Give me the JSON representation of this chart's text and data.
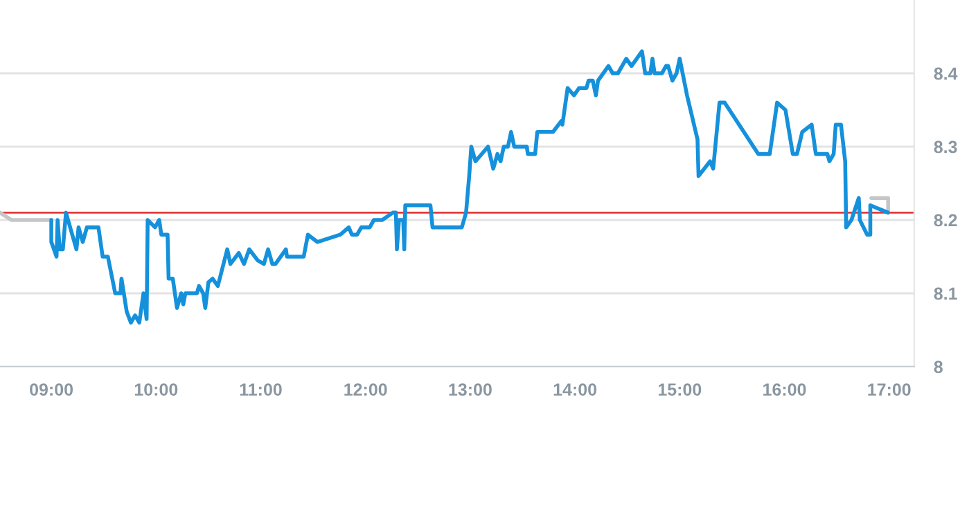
{
  "chart_data": {
    "type": "line",
    "xlim": [
      8.51,
      17.24
    ],
    "ylim": [
      8,
      8.5
    ],
    "xticks": [
      {
        "value": 9,
        "label": "09:00"
      },
      {
        "value": 10,
        "label": "10:00"
      },
      {
        "value": 11,
        "label": "11:00"
      },
      {
        "value": 12,
        "label": "12:00"
      },
      {
        "value": 13,
        "label": "13:00"
      },
      {
        "value": 14,
        "label": "14:00"
      },
      {
        "value": 15,
        "label": "15:00"
      },
      {
        "value": 16,
        "label": "16:00"
      },
      {
        "value": 17,
        "label": "17:00"
      }
    ],
    "yticks": [
      8,
      8.1,
      8.2,
      8.3,
      8.4
    ],
    "grid": "y",
    "line_style": "solid",
    "marker": "none",
    "ref_lines": [
      {
        "axis": "y",
        "value": 8.21,
        "color": "#e03a3a"
      }
    ],
    "series": [
      {
        "color": "#c4c6c8",
        "x": [
          8.51,
          8.62,
          9.0,
          null,
          16.83,
          16.99,
          16.99
        ],
        "values": [
          8.21,
          8.2,
          8.2,
          null,
          8.23,
          8.23,
          8.21
        ]
      },
      {
        "color": "#1591dc",
        "x": [
          9.0,
          9.0,
          9.05,
          9.06,
          9.08,
          9.11,
          9.14,
          9.24,
          9.26,
          9.3,
          9.34,
          9.45,
          9.49,
          9.54,
          9.61,
          9.66,
          9.67,
          9.72,
          9.76,
          9.8,
          9.84,
          9.88,
          9.91,
          9.92,
          9.99,
          10.03,
          10.05,
          10.11,
          10.12,
          10.16,
          10.2,
          10.24,
          10.26,
          10.28,
          10.39,
          10.41,
          10.45,
          10.47,
          10.5,
          10.54,
          10.59,
          10.68,
          10.71,
          10.79,
          10.84,
          10.89,
          10.97,
          11.03,
          11.07,
          11.11,
          11.14,
          11.24,
          11.25,
          11.41,
          11.45,
          11.54,
          11.76,
          11.84,
          11.87,
          11.92,
          11.96,
          12.04,
          12.08,
          12.16,
          12.26,
          12.29,
          12.3,
          12.32,
          12.36,
          12.37,
          12.38,
          12.62,
          12.64,
          12.92,
          12.96,
          12.99,
          13.01,
          13.05,
          13.17,
          13.22,
          13.26,
          13.29,
          13.32,
          13.36,
          13.39,
          13.42,
          13.54,
          13.55,
          13.62,
          13.64,
          13.79,
          13.87,
          13.88,
          13.93,
          13.99,
          14.04,
          14.11,
          14.13,
          14.17,
          14.2,
          14.22,
          14.32,
          14.36,
          14.41,
          14.49,
          14.54,
          14.64,
          14.67,
          14.72,
          14.74,
          14.76,
          14.83,
          14.87,
          14.89,
          14.93,
          14.97,
          15.0,
          15.07,
          15.17,
          15.18,
          15.29,
          15.32,
          15.38,
          15.43,
          15.75,
          15.86,
          15.93,
          16.01,
          16.08,
          16.12,
          16.17,
          16.26,
          16.3,
          16.41,
          16.43,
          16.47,
          16.49,
          16.54,
          16.58,
          16.59,
          16.64,
          16.71,
          16.72,
          16.79,
          16.82,
          16.82,
          16.99
        ],
        "values": [
          8.2,
          8.17,
          8.15,
          8.2,
          8.16,
          8.16,
          8.21,
          8.16,
          8.19,
          8.17,
          8.19,
          8.19,
          8.15,
          8.15,
          8.1,
          8.1,
          8.12,
          8.075,
          8.06,
          8.07,
          8.06,
          8.1,
          8.065,
          8.2,
          8.19,
          8.2,
          8.18,
          8.18,
          8.12,
          8.12,
          8.08,
          8.1,
          8.085,
          8.1,
          8.1,
          8.11,
          8.1,
          8.08,
          8.115,
          8.12,
          8.11,
          8.16,
          8.14,
          8.155,
          8.14,
          8.16,
          8.145,
          8.14,
          8.16,
          8.14,
          8.14,
          8.16,
          8.15,
          8.15,
          8.18,
          8.17,
          8.18,
          8.19,
          8.18,
          8.18,
          8.19,
          8.19,
          8.2,
          8.2,
          8.21,
          8.21,
          8.16,
          8.2,
          8.2,
          8.16,
          8.22,
          8.22,
          8.19,
          8.19,
          8.21,
          8.26,
          8.3,
          8.28,
          8.3,
          8.27,
          8.29,
          8.28,
          8.3,
          8.3,
          8.32,
          8.3,
          8.3,
          8.29,
          8.29,
          8.32,
          8.32,
          8.335,
          8.33,
          8.38,
          8.37,
          8.38,
          8.38,
          8.39,
          8.39,
          8.37,
          8.39,
          8.41,
          8.4,
          8.4,
          8.42,
          8.41,
          8.43,
          8.4,
          8.4,
          8.42,
          8.4,
          8.4,
          8.41,
          8.41,
          8.39,
          8.4,
          8.42,
          8.37,
          8.31,
          8.26,
          8.28,
          8.27,
          8.36,
          8.36,
          8.29,
          8.29,
          8.36,
          8.35,
          8.29,
          8.29,
          8.32,
          8.33,
          8.29,
          8.29,
          8.28,
          8.29,
          8.33,
          8.33,
          8.28,
          8.19,
          8.2,
          8.23,
          8.2,
          8.18,
          8.18,
          8.22,
          8.21
        ]
      }
    ]
  }
}
